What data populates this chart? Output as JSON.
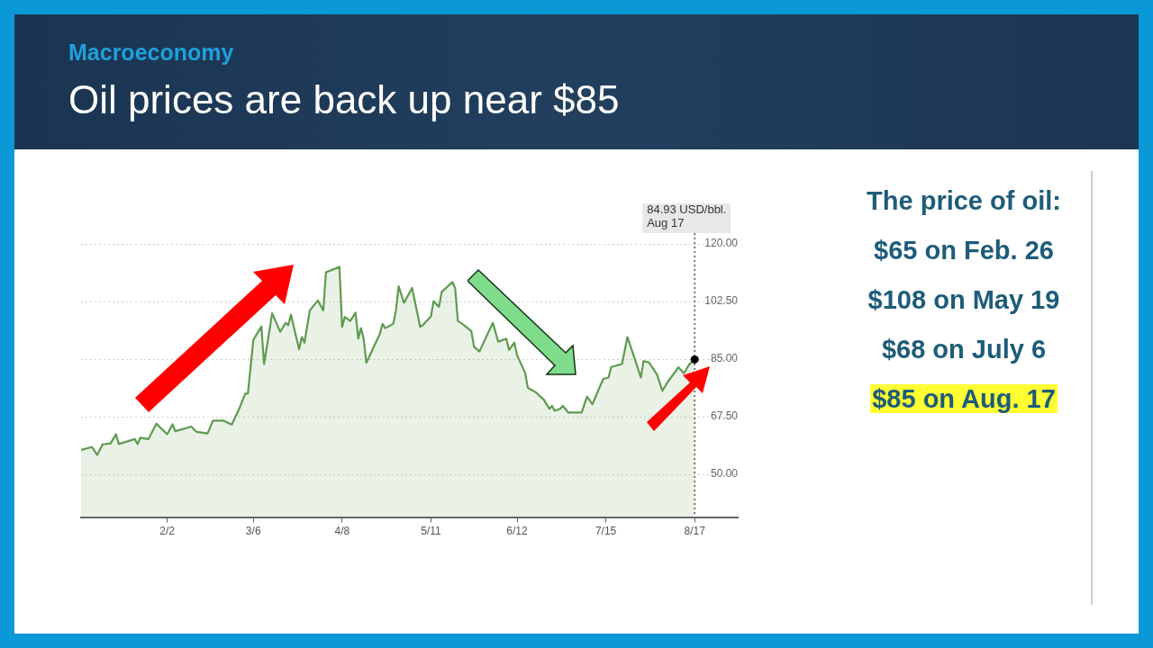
{
  "chart_data": {
    "type": "area",
    "title": "Oil prices are back up near $85",
    "subtitle": "Macroeconomy",
    "x": [
      "--01-01",
      "--01-05",
      "--01-07",
      "--01-09",
      "--01-12",
      "--01-14",
      "--01-15",
      "--01-21",
      "--01-22",
      "--01-23",
      "--01-26",
      "--01-29",
      "--02-02",
      "--02-04",
      "--02-05",
      "--02-11",
      "--02-12",
      "--02-13",
      "--02-17",
      "--02-19",
      "--02-23",
      "--02-26",
      "--03-01",
      "--03-03",
      "--03-04",
      "--03-06",
      "--03-09",
      "--03-10",
      "--03-13",
      "--03-16",
      "--03-18",
      "--03-19",
      "--03-20",
      "--03-23",
      "--03-24",
      "--03-25",
      "--03-27",
      "--03-30",
      "--04-01",
      "--04-02",
      "--04-07",
      "--04-08",
      "--04-09",
      "--04-11",
      "--04-13",
      "--04-14",
      "--04-15",
      "--04-16",
      "--04-17",
      "--04-22",
      "--04-23",
      "--04-24",
      "--04-27",
      "--04-28",
      "--04-29",
      "--05-01",
      "--05-04",
      "--05-07",
      "--05-08",
      "--05-11",
      "--05-12",
      "--05-14",
      "--05-15",
      "--05-19",
      "--05-20",
      "--05-21",
      "--05-23",
      "--05-26",
      "--05-27",
      "--05-29",
      "--06-03",
      "--06-05",
      "--06-08",
      "--06-09",
      "--06-11",
      "--06-12",
      "--06-15",
      "--06-16",
      "--06-19",
      "--06-22",
      "--06-24",
      "--06-25",
      "--06-26",
      "--06-28",
      "--06-29",
      "--07-01",
      "--07-06",
      "--07-08",
      "--07-10",
      "--07-14",
      "--07-16",
      "--07-17",
      "--07-21",
      "--07-23",
      "--07-26",
      "--07-28",
      "--07-29",
      "--07-31",
      "--08-03",
      "--08-05",
      "--08-07",
      "--08-11",
      "--08-13",
      "--08-15",
      "--08-17"
    ],
    "series": [
      {
        "color": "#5f9a4f",
        "values": [
          57.4,
          58.3,
          55.9,
          59.1,
          59.4,
          62.2,
          59.2,
          60.7,
          59.2,
          61.1,
          60.7,
          65.4,
          62.2,
          65.2,
          63.1,
          64.5,
          63.6,
          62.9,
          62.4,
          66.3,
          66.3,
          65.1,
          70.4,
          74.5,
          74.6,
          90.8,
          94.9,
          83.5,
          98.9,
          93.3,
          96.0,
          95.3,
          98.5,
          88.0,
          91.7,
          90.0,
          99.8,
          102.8,
          99.8,
          111.4,
          113.0,
          94.8,
          97.8,
          96.6,
          99.1,
          91.2,
          94.4,
          91.2,
          83.9,
          92.6,
          95.7,
          94.4,
          95.7,
          99.8,
          107.1,
          102.1,
          106.6,
          94.8,
          95.3,
          98.0,
          102.6,
          100.9,
          105.4,
          108.4,
          106.6,
          96.6,
          95.5,
          93.5,
          88.8,
          87.3,
          96.0,
          90.3,
          91.2,
          87.8,
          90.0,
          86.2,
          80.8,
          76.3,
          74.9,
          72.6,
          69.9,
          70.8,
          69.3,
          69.9,
          70.8,
          68.8,
          68.8,
          73.6,
          71.3,
          79.0,
          79.4,
          82.6,
          83.5,
          91.7,
          84.4,
          79.4,
          84.4,
          84.0,
          80.3,
          75.4,
          78.1,
          82.5,
          80.7,
          83.4,
          84.9
        ]
      }
    ],
    "xlim": [
      "--01-01",
      "--09-02"
    ],
    "xticks": [
      {
        "value": "--02-02",
        "label": "2/2"
      },
      {
        "value": "--03-06",
        "label": "3/6"
      },
      {
        "value": "--04-08",
        "label": "4/8"
      },
      {
        "value": "--05-11",
        "label": "5/11"
      },
      {
        "value": "--06-12",
        "label": "6/12"
      },
      {
        "value": "--07-15",
        "label": "7/15"
      },
      {
        "value": "--08-17",
        "label": "8/17"
      }
    ],
    "ylim": [
      37,
      120
    ],
    "yticks": [
      {
        "value": 50,
        "label": "50.00"
      },
      {
        "value": 67.5,
        "label": "67.50"
      },
      {
        "value": 85,
        "label": "85.00"
      },
      {
        "value": 102.5,
        "label": "102.50"
      },
      {
        "value": 120,
        "label": "120.00"
      }
    ],
    "grid": "y",
    "legend": false,
    "marker": "none",
    "line_style": "solid",
    "ref_lines": [
      {
        "axis": "x",
        "value": "--08-17",
        "line_style": "dotted",
        "color": "#777777",
        "label": "84.93 USD/bbl.\nAug 17"
      }
    ],
    "annotations": [
      "The price of oil:",
      "$65 on Feb. 26",
      "$108 on May 19",
      "$68 on July 6",
      "$85 on Aug. 17"
    ]
  }
}
